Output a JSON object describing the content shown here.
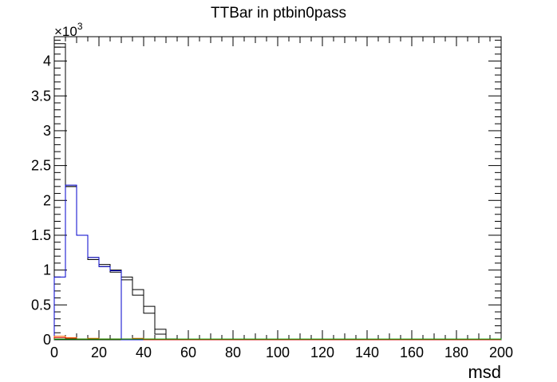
{
  "chart_data": {
    "type": "histogram",
    "title": "TTBar in ptbin0pass",
    "xlabel": "msd",
    "ylabel": "",
    "y_multiplier_label": "×10",
    "y_multiplier_exponent": "3",
    "xlim": [
      0,
      200
    ],
    "ylim": [
      0,
      4.35
    ],
    "x_ticks": [
      "0",
      "20",
      "40",
      "60",
      "80",
      "100",
      "120",
      "140",
      "160",
      "180",
      "200"
    ],
    "y_ticks": [
      "0",
      "0.5",
      "1",
      "1.5",
      "2",
      "2.5",
      "3",
      "3.5",
      "4"
    ],
    "bin_edges": [
      0,
      5,
      10,
      15,
      20,
      25,
      30,
      35,
      40,
      45,
      50,
      55,
      60,
      65,
      70,
      75,
      80,
      85,
      90,
      95,
      100,
      105,
      110,
      115,
      120,
      125,
      130,
      135,
      140,
      145,
      150,
      155,
      160,
      165,
      170,
      175,
      180,
      185,
      190,
      195,
      200
    ],
    "series": [
      {
        "color": "#000000",
        "values": [
          4.25,
          2.2,
          1.5,
          1.18,
          1.08,
          1.0,
          0.9,
          0.72,
          0.48,
          0.15,
          0.01,
          0,
          0,
          0,
          0,
          0,
          0,
          0,
          0,
          0,
          0,
          0,
          0,
          0,
          0,
          0,
          0,
          0,
          0,
          0,
          0,
          0,
          0,
          0,
          0,
          0,
          0,
          0,
          0,
          0
        ]
      },
      {
        "color": "#000000",
        "values": [
          4.2,
          2.2,
          1.5,
          1.15,
          1.05,
          0.97,
          0.86,
          0.64,
          0.38,
          0.08,
          0,
          0,
          0,
          0,
          0,
          0,
          0,
          0,
          0,
          0,
          0,
          0,
          0,
          0,
          0,
          0,
          0,
          0,
          0,
          0,
          0,
          0,
          0,
          0,
          0,
          0,
          0,
          0,
          0,
          0
        ]
      },
      {
        "color": "#0000cc",
        "values": [
          0.9,
          2.22,
          1.5,
          1.18,
          1.05,
          0.99,
          0,
          0,
          0,
          0,
          0,
          0,
          0,
          0,
          0,
          0,
          0,
          0,
          0,
          0,
          0,
          0,
          0,
          0,
          0,
          0,
          0,
          0,
          0,
          0,
          0,
          0,
          0,
          0,
          0,
          0,
          0,
          0,
          0,
          0
        ]
      },
      {
        "color": "#ff6600",
        "values": [
          0.05,
          0.03,
          0.01,
          0.02,
          0.01,
          0.01,
          0.01,
          0.02,
          0.01,
          0,
          0,
          0,
          0,
          0,
          0,
          0,
          0,
          0,
          0,
          0,
          0,
          0,
          0,
          0,
          0,
          0,
          0,
          0,
          0,
          0,
          0,
          0,
          0,
          0,
          0,
          0,
          0,
          0,
          0,
          0
        ]
      },
      {
        "color": "#cc0000",
        "values": [
          0.03,
          0.02,
          0.01,
          0.01,
          0.01,
          0.01,
          0.01,
          0.01,
          0,
          0,
          0,
          0,
          0,
          0,
          0,
          0,
          0,
          0,
          0,
          0,
          0,
          0,
          0,
          0,
          0,
          0,
          0,
          0,
          0,
          0,
          0,
          0,
          0,
          0,
          0,
          0,
          0,
          0,
          0,
          0
        ]
      },
      {
        "color": "#00aa00",
        "values": [
          0.01,
          0.01,
          0.01,
          0.01,
          0.01,
          0.01,
          0.01,
          0.01,
          0.01,
          0.01,
          0.01,
          0.01,
          0.01,
          0.01,
          0.01,
          0.01,
          0.01,
          0.01,
          0.01,
          0.01,
          0.01,
          0.01,
          0.01,
          0.01,
          0.01,
          0.01,
          0.01,
          0.01,
          0.01,
          0.01,
          0.01,
          0.01,
          0.01,
          0.01,
          0.01,
          0.01,
          0.01,
          0.01,
          0.01,
          0.01
        ]
      }
    ]
  }
}
